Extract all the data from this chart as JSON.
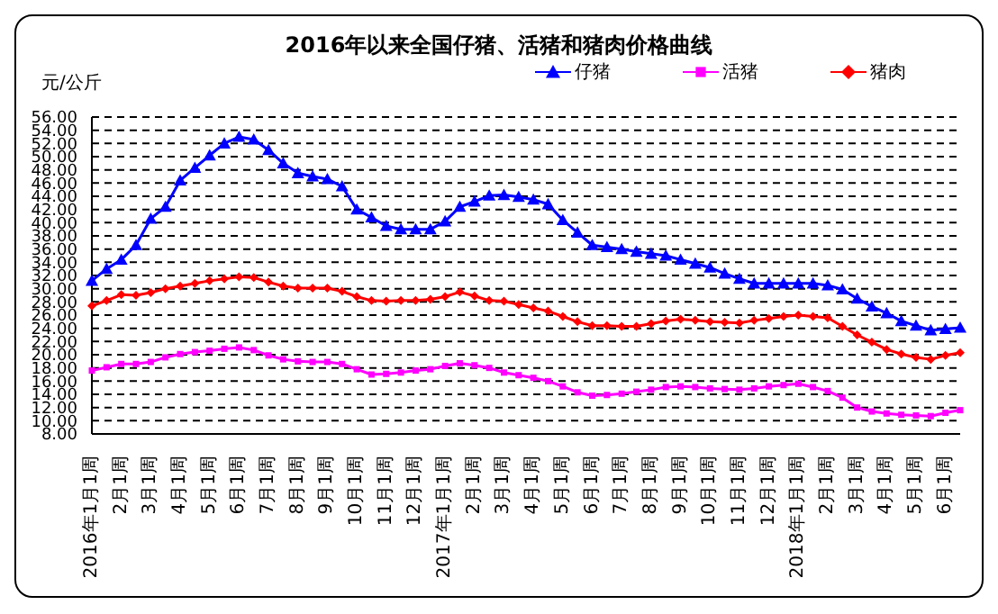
{
  "chart_data": {
    "type": "line",
    "title": "2016年以来全国仔猪、活猪和猪肉价格曲线",
    "ylabel": "元/公斤",
    "categories": [
      "2016年1月1周",
      null,
      "2月1周",
      null,
      "3月1周",
      null,
      "4月1周",
      null,
      "5月1周",
      null,
      "6月1周",
      null,
      "7月1周",
      null,
      "8月1周",
      null,
      "9月1周",
      null,
      "10月1周",
      null,
      "11月1周",
      null,
      "12月1周",
      null,
      "2017年1月1周",
      null,
      "2月1周",
      null,
      "3月1周",
      null,
      "4月1周",
      null,
      "5月1周",
      null,
      "6月1周",
      null,
      "7月1周",
      null,
      "8月1周",
      null,
      "9月1周",
      null,
      "10月1周",
      null,
      "11月1周",
      null,
      "12月1周",
      null,
      "2018年1月1周",
      null,
      "2月1周",
      null,
      "3月1周",
      null,
      "4月1周",
      null,
      "5月1周",
      null,
      "6月1周",
      null
    ],
    "series": [
      {
        "name": "仔猪",
        "color": "#0000ff",
        "marker": "triangle",
        "values": [
          31.2,
          33.0,
          34.4,
          36.6,
          40.6,
          42.4,
          46.4,
          48.3,
          50.2,
          52,
          53,
          52.6,
          51,
          49,
          47.5,
          47,
          46.6,
          45.5,
          42,
          40.8,
          39.5,
          39,
          39,
          39,
          40.2,
          42.4,
          43.2,
          44.1,
          44.2,
          43.9,
          43.5,
          42.8,
          40.4,
          38.5,
          36.6,
          36.3,
          36,
          35.6,
          35.3,
          35,
          34.4,
          33.8,
          33.2,
          32.3,
          31.5,
          30.8,
          30.8,
          30.8,
          30.8,
          30.8,
          30.5,
          29.9,
          28.5,
          27.3,
          26.3,
          25.1,
          24.4,
          23.7,
          23.9,
          24.1
        ]
      },
      {
        "name": "活猪",
        "color": "#ff00ff",
        "marker": "square",
        "values": [
          17.6,
          18.1,
          18.6,
          18.6,
          18.9,
          19.6,
          20.1,
          20.4,
          20.6,
          20.9,
          21.1,
          20.7,
          19.9,
          19.3,
          19.0,
          18.9,
          18.9,
          18.6,
          17.8,
          17.0,
          17.1,
          17.3,
          17.6,
          17.8,
          18.3,
          18.7,
          18.4,
          18.0,
          17.3,
          16.9,
          16.5,
          16.0,
          15.2,
          14.3,
          13.8,
          13.9,
          14.1,
          14.4,
          14.7,
          15.1,
          15.2,
          15.1,
          14.9,
          14.8,
          14.7,
          14.9,
          15.2,
          15.4,
          15.6,
          15.1,
          14.5,
          13.5,
          12.0,
          11.4,
          11.1,
          10.9,
          10.8,
          10.7,
          11.2,
          11.6
        ]
      },
      {
        "name": "猪肉",
        "color": "#ff0000",
        "marker": "diamond",
        "values": [
          27.4,
          28.2,
          29.1,
          29.0,
          29.4,
          30.0,
          30.4,
          30.8,
          31.2,
          31.5,
          31.8,
          31.7,
          31.0,
          30.4,
          30.1,
          30.1,
          30.1,
          29.6,
          28.8,
          28.2,
          28.1,
          28.2,
          28.2,
          28.4,
          28.8,
          29.5,
          28.9,
          28.2,
          28.1,
          27.6,
          27.1,
          26.6,
          25.8,
          25.0,
          24.4,
          24.4,
          24.3,
          24.3,
          24.7,
          25.1,
          25.4,
          25.2,
          25.0,
          24.9,
          24.8,
          25.2,
          25.5,
          25.8,
          26.0,
          25.8,
          25.6,
          24.3,
          23.0,
          21.9,
          20.8,
          20.1,
          19.6,
          19.3,
          19.9,
          20.3
        ]
      }
    ],
    "ylim": [
      8,
      56
    ],
    "yticks": [
      {
        "value": 8,
        "label": "8.00"
      },
      {
        "value": 10,
        "label": "10.00"
      },
      {
        "value": 12,
        "label": "12.00"
      },
      {
        "value": 14,
        "label": "14.00"
      },
      {
        "value": 16,
        "label": "16.00"
      },
      {
        "value": 18,
        "label": "18.00"
      },
      {
        "value": 20,
        "label": "20.00"
      },
      {
        "value": 22,
        "label": "22.00"
      },
      {
        "value": 24,
        "label": "24.00"
      },
      {
        "value": 26,
        "label": "26.00"
      },
      {
        "value": 28,
        "label": "28.00"
      },
      {
        "value": 30,
        "label": "30.00"
      },
      {
        "value": 32,
        "label": "32.00"
      },
      {
        "value": 34,
        "label": "34.00"
      },
      {
        "value": 36,
        "label": "36.00"
      },
      {
        "value": 38,
        "label": "38.00"
      },
      {
        "value": 40,
        "label": "40.00"
      },
      {
        "value": 42,
        "label": "42.00"
      },
      {
        "value": 44,
        "label": "44.00"
      },
      {
        "value": 46,
        "label": "46.00"
      },
      {
        "value": 48,
        "label": "48.00"
      },
      {
        "value": 50,
        "label": "50.00"
      },
      {
        "value": 52,
        "label": "52.00"
      },
      {
        "value": 54,
        "label": "54.00"
      },
      {
        "value": 56,
        "label": "56.00"
      }
    ],
    "grid": "y",
    "legend": "top right",
    "line_style": "solid"
  }
}
